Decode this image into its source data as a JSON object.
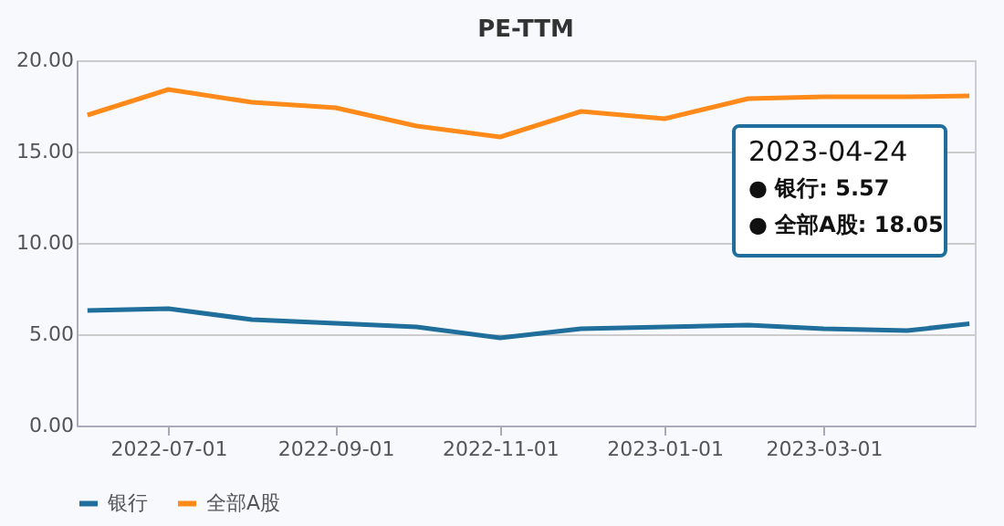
{
  "chart_data": {
    "type": "line",
    "title": "PE-TTM",
    "x": [
      "2022-06-01",
      "2022-07-01",
      "2022-08-01",
      "2022-09-01",
      "2022-10-01",
      "2022-11-01",
      "2022-12-01",
      "2023-01-01",
      "2023-02-01",
      "2023-03-01",
      "2023-04-01",
      "2023-04-24"
    ],
    "series": [
      {
        "name": "银行",
        "color": "#1f6e9c",
        "values": [
          6.3,
          6.4,
          5.8,
          5.6,
          5.4,
          4.8,
          5.3,
          5.4,
          5.5,
          5.3,
          5.2,
          5.57
        ]
      },
      {
        "name": "全部A股",
        "color": "#ff8a1a",
        "values": [
          17.0,
          18.4,
          17.7,
          17.4,
          16.4,
          15.8,
          17.2,
          16.8,
          17.9,
          18.0,
          18.0,
          18.05
        ]
      }
    ],
    "xlim": [
      "2022-05-28",
      "2023-04-26"
    ],
    "xticks": [
      {
        "value": "2022-07-01",
        "label": "2022-07-01"
      },
      {
        "value": "2022-09-01",
        "label": "2022-09-01"
      },
      {
        "value": "2022-11-01",
        "label": "2022-11-01"
      },
      {
        "value": "2023-01-01",
        "label": "2023-01-01"
      },
      {
        "value": "2023-03-01",
        "label": "2023-03-01"
      }
    ],
    "ylim": [
      0,
      20
    ],
    "yticks": [
      {
        "value": 0,
        "label": "0.00"
      },
      {
        "value": 5,
        "label": "5.00"
      },
      {
        "value": 10,
        "label": "10.00"
      },
      {
        "value": 15,
        "label": "15.00"
      },
      {
        "value": 20,
        "label": "20.00"
      }
    ],
    "grid": "y",
    "legend": "bottom",
    "marker": "none",
    "line_style": "solid",
    "annotations": [
      "2023-04-24",
      "● 银行: 5.57",
      "● 全部A股: 18.05"
    ]
  }
}
